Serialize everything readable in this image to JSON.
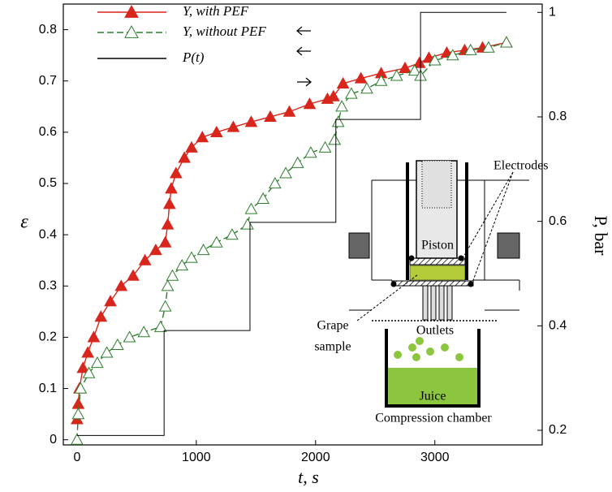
{
  "chart_data": {
    "type": "line",
    "xlabel": "t, s",
    "ylabel": "ε",
    "y2label": "P, bar",
    "xlim": [
      -115,
      3900
    ],
    "xticks": [
      0,
      1000,
      2000,
      3000
    ],
    "ylim": [
      -0.01,
      0.85
    ],
    "yticks": [
      0,
      0.1,
      0.2,
      0.3,
      0.4,
      0.5,
      0.6,
      0.7,
      0.8
    ],
    "y2lim": [
      0.172,
      1.016
    ],
    "y2ticks": [
      0.2,
      0.4,
      0.6,
      0.8,
      1
    ],
    "legend": "upper left",
    "series": [
      {
        "name": "Y, with PEF",
        "color": "#d9261c",
        "marker": "filled-triangle",
        "dash": false,
        "x": [
          0,
          10,
          20,
          50,
          90,
          140,
          200,
          280,
          370,
          470,
          570,
          660,
          740,
          760,
          775,
          790,
          830,
          900,
          960,
          1050,
          1170,
          1310,
          1460,
          1620,
          1780,
          1950,
          2100,
          2150,
          2230,
          2380,
          2550,
          2750,
          2870,
          2950,
          3100,
          3250,
          3400,
          3600
        ],
        "values": [
          0.04,
          0.07,
          0.1,
          0.14,
          0.17,
          0.2,
          0.24,
          0.27,
          0.3,
          0.32,
          0.35,
          0.37,
          0.385,
          0.42,
          0.46,
          0.49,
          0.52,
          0.55,
          0.57,
          0.59,
          0.6,
          0.61,
          0.62,
          0.63,
          0.64,
          0.655,
          0.665,
          0.67,
          0.695,
          0.705,
          0.715,
          0.725,
          0.735,
          0.745,
          0.755,
          0.76,
          0.765,
          0.775
        ]
      },
      {
        "name": "Y, without PEF",
        "color": "#2e7d2e",
        "marker": "open-triangle",
        "dash": true,
        "x": [
          0,
          10,
          30,
          100,
          170,
          250,
          340,
          440,
          560,
          700,
          740,
          760,
          800,
          880,
          960,
          1060,
          1170,
          1300,
          1430,
          1460,
          1560,
          1660,
          1750,
          1850,
          1960,
          2080,
          2160,
          2190,
          2220,
          2300,
          2430,
          2550,
          2680,
          2830,
          2880,
          3000,
          3150,
          3300,
          3450,
          3600
        ],
        "values": [
          0,
          0.05,
          0.1,
          0.13,
          0.15,
          0.17,
          0.185,
          0.2,
          0.21,
          0.22,
          0.26,
          0.3,
          0.32,
          0.34,
          0.355,
          0.37,
          0.385,
          0.4,
          0.42,
          0.45,
          0.47,
          0.5,
          0.52,
          0.54,
          0.56,
          0.57,
          0.585,
          0.62,
          0.65,
          0.675,
          0.685,
          0.7,
          0.71,
          0.72,
          0.71,
          0.74,
          0.75,
          0.76,
          0.765,
          0.775
        ]
      },
      {
        "name": "P(t)",
        "color": "#000000",
        "marker": "none",
        "dash": false,
        "axis": "y2",
        "x": [
          0,
          730,
          730,
          1450,
          1450,
          2170,
          2170,
          2880,
          2880,
          3600
        ],
        "values": [
          0.19,
          0.19,
          0.391,
          0.391,
          0.598,
          0.598,
          0.795,
          0.795,
          1.0,
          1.0
        ]
      }
    ],
    "annotations": [
      "Electrodes",
      "Piston",
      "Grape",
      "sample",
      "Outlets",
      "Juice",
      "Compression chamber"
    ]
  }
}
